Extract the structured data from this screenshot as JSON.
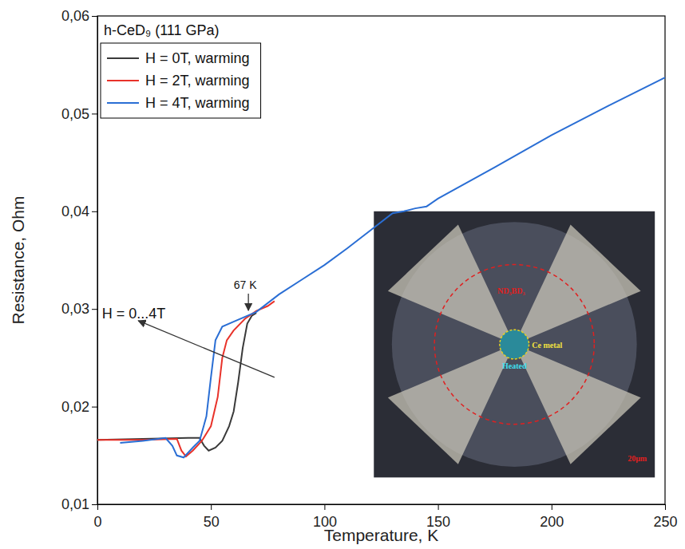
{
  "chart_data": {
    "type": "line",
    "title": "h-CeD₉ (111 GPa)",
    "x_label": "Temperature, K",
    "y_label": "Resistance, Ohm",
    "xlim": [
      0,
      250
    ],
    "xticks": [
      0,
      50,
      100,
      150,
      200,
      250
    ],
    "ylim": [
      0.01,
      0.06
    ],
    "yticks": [
      {
        "value": 0.01,
        "label": "0,01"
      },
      {
        "value": 0.02,
        "label": "0,02"
      },
      {
        "value": 0.03,
        "label": "0,03"
      },
      {
        "value": 0.04,
        "label": "0,04"
      },
      {
        "value": 0.05,
        "label": "0,05"
      },
      {
        "value": 0.06,
        "label": "0,06"
      }
    ],
    "legend": "upper left",
    "series": [
      {
        "name": "H = 0T, warming",
        "color": "#3a3a3a",
        "x": [
          0,
          20,
          40,
          45,
          47,
          49,
          52,
          55,
          58,
          60,
          62,
          64,
          66,
          68,
          70
        ],
        "values": [
          0.0166,
          0.0167,
          0.0168,
          0.0168,
          0.016,
          0.0155,
          0.0158,
          0.0165,
          0.018,
          0.0195,
          0.0225,
          0.026,
          0.0285,
          0.0293,
          0.0296
        ]
      },
      {
        "name": "H = 2T, warming",
        "color": "#e8322a",
        "x": [
          0,
          20,
          35,
          37,
          39,
          42,
          46,
          50,
          53,
          55,
          57,
          60,
          65,
          70,
          75,
          78
        ],
        "values": [
          0.0166,
          0.0166,
          0.0167,
          0.0155,
          0.0149,
          0.0155,
          0.0165,
          0.018,
          0.021,
          0.025,
          0.0268,
          0.0278,
          0.029,
          0.0298,
          0.0303,
          0.0308
        ]
      },
      {
        "name": "H = 4T, warming",
        "color": "#2a6ed4",
        "x": [
          10,
          20,
          30,
          33,
          35,
          38,
          42,
          45,
          48,
          50,
          52,
          55,
          60,
          70,
          80,
          90,
          100,
          110,
          120,
          130,
          135,
          140,
          145,
          150,
          175,
          200,
          225,
          250
        ],
        "values": [
          0.0163,
          0.0165,
          0.0168,
          0.016,
          0.015,
          0.0148,
          0.0158,
          0.0165,
          0.019,
          0.023,
          0.0268,
          0.0282,
          0.0287,
          0.0297,
          0.0315,
          0.033,
          0.0345,
          0.0362,
          0.038,
          0.0398,
          0.04,
          0.0403,
          0.0405,
          0.0413,
          0.0445,
          0.0478,
          0.0508,
          0.0537
        ]
      }
    ],
    "annotations": [
      {
        "text": "67 K",
        "x": 66.5,
        "y": 0.0296
      },
      {
        "text": "H = 0...4T",
        "x": 2,
        "y": 0.0294,
        "arrow_from": [
          78,
          0.023
        ],
        "arrow_to": [
          18,
          0.0288
        ]
      }
    ],
    "inset_labels": [
      "ND₃BD₃",
      "Ce metal",
      "Heated",
      "20μm"
    ]
  }
}
